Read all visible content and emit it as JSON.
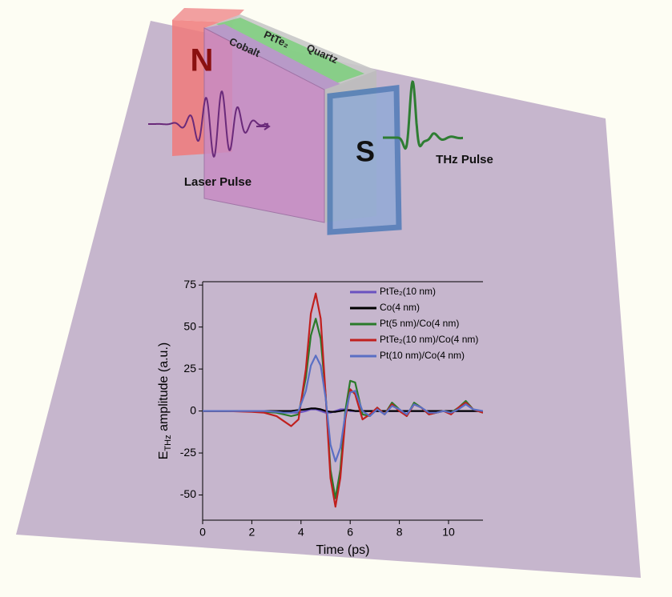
{
  "diagram": {
    "north": "N",
    "south": "S",
    "layer1": "Cobalt",
    "layer2": "PtTe₂",
    "layer3": "Quartz",
    "laser": "Laser Pulse",
    "thz": "THz Pulse"
  },
  "chart_data": {
    "type": "line",
    "xlabel": "Time (ps)",
    "ylabel_parts": [
      "E",
      "THz",
      " amplitude (a.u.)"
    ],
    "x": [
      0,
      1,
      2,
      2.5,
      3,
      3.3,
      3.6,
      3.9,
      4.2,
      4.4,
      4.6,
      4.8,
      5.0,
      5.2,
      5.4,
      5.6,
      5.8,
      6.0,
      6.2,
      6.5,
      6.8,
      7.1,
      7.4,
      7.7,
      8.0,
      8.3,
      8.6,
      8.9,
      9.2,
      9.5,
      9.8,
      10.1,
      10.4,
      10.7,
      11.0,
      11.4
    ],
    "xlim": [
      0,
      11.4
    ],
    "xticks": [
      0,
      2,
      4,
      6,
      8,
      10
    ],
    "ylim": [
      -65,
      77
    ],
    "yticks": [
      -50,
      -25,
      0,
      25,
      50,
      75
    ],
    "series": [
      {
        "name": "PtTe₂(10 nm)",
        "color": "#6a52c0",
        "values": [
          0,
          0,
          0,
          0,
          0,
          -0.5,
          -1,
          -1,
          0,
          1,
          1,
          0,
          -1,
          -1,
          0,
          1,
          1,
          0,
          0,
          0,
          0,
          0,
          0,
          0,
          0,
          0,
          0,
          0,
          0,
          0,
          0,
          0,
          0,
          0,
          0,
          0
        ]
      },
      {
        "name": "Co(4 nm)",
        "color": "#000000",
        "values": [
          0,
          0,
          0,
          0,
          0,
          0,
          0,
          0.5,
          1,
          1.5,
          1.5,
          1,
          0,
          -0.5,
          -0.5,
          0,
          0.5,
          0.5,
          0,
          0,
          0,
          0,
          0,
          0,
          0,
          0,
          0,
          0,
          0,
          0,
          0,
          0,
          0,
          0,
          0,
          0
        ]
      },
      {
        "name": "Pt(5 nm)/Co(4 nm)",
        "color": "#2a7a2a",
        "values": [
          0,
          0,
          0,
          -0.5,
          -1,
          -2,
          -3,
          -2,
          20,
          45,
          55,
          43,
          10,
          -35,
          -52,
          -35,
          0,
          18,
          17,
          -2,
          -3,
          2,
          -2,
          5,
          1,
          -3,
          5,
          2,
          -2,
          -1,
          0,
          -1,
          2,
          6,
          1,
          -1
        ]
      },
      {
        "name": "PtTe₂(10 nm)/Co(4 nm)",
        "color": "#c0201e",
        "values": [
          0,
          0,
          -0.5,
          -1,
          -3,
          -6,
          -9,
          -5,
          25,
          58,
          70,
          55,
          10,
          -40,
          -57,
          -40,
          -5,
          13,
          10,
          -5,
          -2,
          2,
          -2,
          4,
          0,
          -3,
          4,
          2,
          -2,
          -1,
          0,
          -2,
          2,
          5,
          1,
          -1
        ]
      },
      {
        "name": "Pt(10 nm)/Co(4 nm)",
        "color": "#5a6fc4",
        "values": [
          0,
          0,
          0,
          0,
          -0.5,
          -1,
          -1,
          0,
          12,
          27,
          33,
          27,
          8,
          -20,
          -30,
          -22,
          -2,
          11,
          12,
          0,
          -3,
          1,
          -2,
          3,
          1,
          -2,
          4,
          2,
          -1,
          -1,
          0,
          -1,
          1,
          4,
          1,
          0
        ]
      }
    ]
  }
}
